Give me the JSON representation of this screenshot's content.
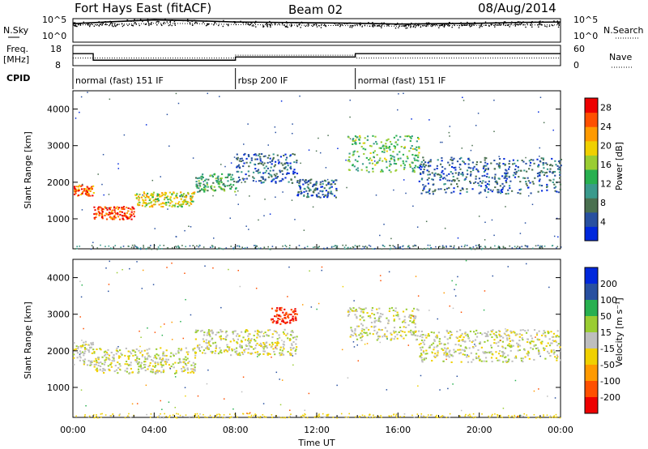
{
  "header": {
    "station": "Fort Hays East (fitACF)",
    "beam": "Beam 02",
    "date": "08/Aug/2014"
  },
  "chart_data": [
    {
      "type": "line",
      "panel": "noise",
      "left_label": "N.Sky",
      "right_label": "N.Search",
      "left_ticks": [
        "10^5",
        "10^0"
      ],
      "right_ticks": [
        "10^5",
        "10^0"
      ],
      "x": [
        0,
        2,
        4,
        6,
        8,
        10,
        12,
        14,
        16,
        18,
        20,
        22,
        24
      ],
      "series": [
        {
          "name": "N.Sky",
          "values": [
            10000,
            31000,
            79000,
            50000,
            25000,
            20000,
            15800,
            12600,
            7900,
            10000,
            12600,
            20000,
            25000
          ]
        },
        {
          "name": "N.Search",
          "values": [
            5000,
            6300,
            12600,
            10000,
            6300,
            5000,
            4000,
            3200,
            2500,
            3200,
            4000,
            5000,
            5000
          ]
        }
      ]
    },
    {
      "type": "line",
      "panel": "frequency",
      "left_label": "Freq.",
      "left_unit": "[MHz]",
      "right_label": "Nave",
      "left_ticks": [
        "18",
        "8"
      ],
      "right_ticks": [
        "60",
        "0"
      ],
      "x": [
        0,
        1,
        1,
        8,
        8,
        13.9,
        13.9,
        24
      ],
      "series": [
        {
          "name": "Freq.",
          "values": [
            14,
            14,
            10.5,
            10.5,
            12.2,
            12.2,
            14,
            14
          ]
        },
        {
          "name": "Nave",
          "values": [
            22,
            22,
            22,
            22,
            31,
            31,
            22,
            22
          ]
        }
      ]
    },
    {
      "type": "table",
      "panel": "cpid",
      "label": "CPID",
      "segments": [
        {
          "start": 0,
          "end": 8,
          "name": "normal (fast) 151 IF"
        },
        {
          "start": 8,
          "end": 13.9,
          "name": "rbsp 200 IF"
        },
        {
          "start": 13.9,
          "end": 24,
          "name": "normal (fast) 151 IF"
        }
      ]
    },
    {
      "type": "heatmap",
      "panel": "power",
      "ylabel": "Slant Range [km]",
      "xlim": [
        0,
        24
      ],
      "ylim": [
        180,
        4500
      ],
      "yticks": [
        1000,
        2000,
        3000,
        4000
      ],
      "colorbar_label": "Power [dB]",
      "colorbar_ticks": [
        4,
        8,
        12,
        16,
        20,
        24,
        28
      ],
      "colorbar_range": [
        0,
        30
      ],
      "colorbar_colors": [
        "#0028dc",
        "#2850a0",
        "#4a7050",
        "#3a9a8c",
        "#28b050",
        "#9acd32",
        "#f0d000",
        "#ff9a00",
        "#ff5000",
        "#ee0000"
      ],
      "features": [
        {
          "t0": 0,
          "t1": 1,
          "r0": 1650,
          "r1": 1950,
          "power": 24
        },
        {
          "t0": 1,
          "t1": 3,
          "r0": 1000,
          "r1": 1350,
          "power": 26
        },
        {
          "t0": 3,
          "t1": 6,
          "r0": 1350,
          "r1": 1750,
          "power": 18
        },
        {
          "t0": 6,
          "t1": 8,
          "r0": 1750,
          "r1": 2250,
          "power": 12
        },
        {
          "t0": 8,
          "t1": 11,
          "r0": 2000,
          "r1": 2800,
          "power": 6
        },
        {
          "t0": 11,
          "t1": 13,
          "r0": 1600,
          "r1": 2100,
          "power": 6
        },
        {
          "t0": 13.5,
          "t1": 17,
          "r0": 2300,
          "r1": 3300,
          "power": 14
        },
        {
          "t0": 17,
          "t1": 24,
          "r0": 1700,
          "r1": 2700,
          "power": 6
        }
      ]
    },
    {
      "type": "heatmap",
      "panel": "velocity",
      "ylabel": "Slant Range [km]",
      "xlabel": "Time UT",
      "xlim": [
        0,
        24
      ],
      "ylim": [
        180,
        4500
      ],
      "yticks": [
        1000,
        2000,
        3000,
        4000
      ],
      "xticks": [
        "00:00",
        "04:00",
        "08:00",
        "12:00",
        "16:00",
        "20:00",
        "00:00"
      ],
      "colorbar_label": "Velocity [m s⁻¹]",
      "colorbar_ticks": [
        200,
        100,
        50,
        15,
        -15,
        -50,
        -100,
        -200
      ],
      "colorbar_colors": [
        "#0028dc",
        "#2850a0",
        "#28b050",
        "#9acd32",
        "#bebebe",
        "#f0d000",
        "#ff9a00",
        "#ff5000",
        "#ee0000"
      ],
      "features": [
        {
          "t0": 0,
          "t1": 1,
          "r0": 1600,
          "r1": 2300,
          "velocity": 0
        },
        {
          "t0": 1,
          "t1": 6,
          "r0": 1400,
          "r1": 2100,
          "velocity": 0
        },
        {
          "t0": 6,
          "t1": 11,
          "r0": 1900,
          "r1": 2600,
          "velocity": 0
        },
        {
          "t0": 9.7,
          "t1": 11,
          "r0": 2750,
          "r1": 3200,
          "velocity": -200
        },
        {
          "t0": 13.5,
          "t1": 17,
          "r0": 2300,
          "r1": 3200,
          "velocity": 0
        },
        {
          "t0": 17,
          "t1": 24,
          "r0": 1700,
          "r1": 2600,
          "velocity": 0
        }
      ]
    }
  ]
}
